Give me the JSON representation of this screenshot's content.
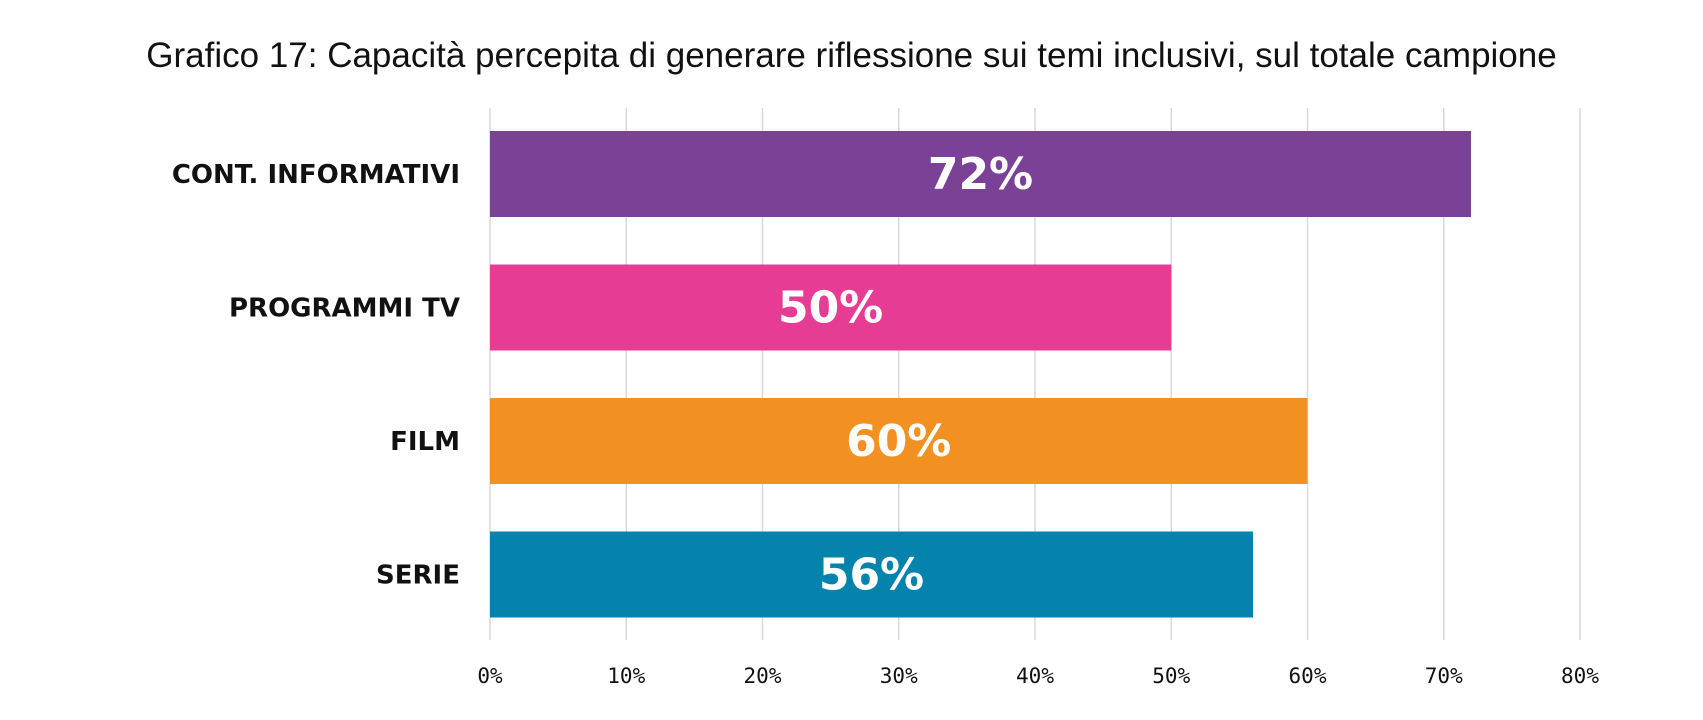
{
  "chart_data": {
    "type": "bar",
    "orientation": "horizontal",
    "title": "Grafico 17: Capacità percepita di generare riflessione sui temi inclusivi, sul totale campione",
    "xlabel": "",
    "ylabel": "",
    "categories": [
      "CONT. INFORMATIVI",
      "PROGRAMMI TV",
      "FILM",
      "SERIE"
    ],
    "values": [
      72,
      50,
      60,
      56
    ],
    "value_labels": [
      "72%",
      "50%",
      "60%",
      "56%"
    ],
    "colors": [
      "#7b4196",
      "#e63c94",
      "#f39022",
      "#0583ad"
    ],
    "xlim": [
      0,
      80
    ],
    "x_ticks": [
      0,
      10,
      20,
      30,
      40,
      50,
      60,
      70,
      80
    ],
    "x_tick_labels": [
      "0%",
      "10%",
      "20%",
      "30%",
      "40%",
      "50%",
      "60%",
      "70%",
      "80%"
    ],
    "grid": "vertical",
    "legend": "none"
  }
}
